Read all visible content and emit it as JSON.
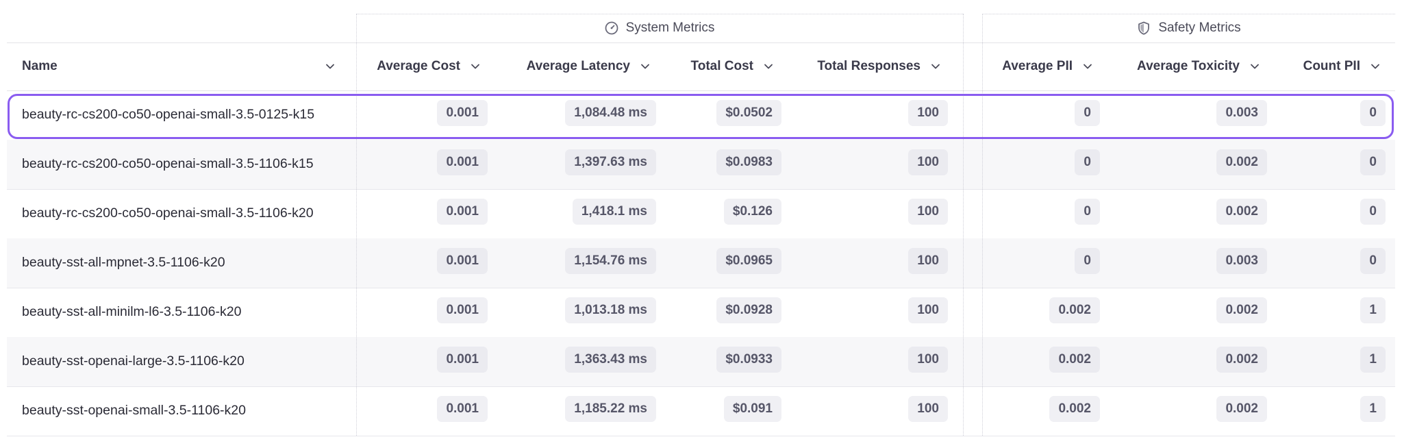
{
  "groups": {
    "system": {
      "label": "System Metrics",
      "icon": "speedometer-icon"
    },
    "safety": {
      "label": "Safety Metrics",
      "icon": "shield-icon"
    }
  },
  "columns": [
    {
      "key": "name",
      "label": "Name"
    },
    {
      "key": "avg_cost",
      "label": "Average Cost"
    },
    {
      "key": "avg_latency",
      "label": "Average Latency"
    },
    {
      "key": "total_cost",
      "label": "Total Cost"
    },
    {
      "key": "total_responses",
      "label": "Total Responses"
    },
    {
      "key": "avg_pii",
      "label": "Average PII"
    },
    {
      "key": "avg_toxicity",
      "label": "Average Toxicity"
    },
    {
      "key": "count_pii",
      "label": "Count PII"
    }
  ],
  "rows": [
    {
      "name": "beauty-rc-cs200-co50-openai-small-3.5-0125-k15",
      "avg_cost": "0.001",
      "avg_latency": "1,084.48 ms",
      "total_cost": "$0.0502",
      "total_responses": "100",
      "avg_pii": "0",
      "avg_toxicity": "0.003",
      "count_pii": "0",
      "selected": true
    },
    {
      "name": "beauty-rc-cs200-co50-openai-small-3.5-1106-k15",
      "avg_cost": "0.001",
      "avg_latency": "1,397.63 ms",
      "total_cost": "$0.0983",
      "total_responses": "100",
      "avg_pii": "0",
      "avg_toxicity": "0.002",
      "count_pii": "0"
    },
    {
      "name": "beauty-rc-cs200-co50-openai-small-3.5-1106-k20",
      "avg_cost": "0.001",
      "avg_latency": "1,418.1 ms",
      "total_cost": "$0.126",
      "total_responses": "100",
      "avg_pii": "0",
      "avg_toxicity": "0.002",
      "count_pii": "0"
    },
    {
      "name": "beauty-sst-all-mpnet-3.5-1106-k20",
      "avg_cost": "0.001",
      "avg_latency": "1,154.76 ms",
      "total_cost": "$0.0965",
      "total_responses": "100",
      "avg_pii": "0",
      "avg_toxicity": "0.003",
      "count_pii": "0"
    },
    {
      "name": "beauty-sst-all-minilm-l6-3.5-1106-k20",
      "avg_cost": "0.001",
      "avg_latency": "1,013.18 ms",
      "total_cost": "$0.0928",
      "total_responses": "100",
      "avg_pii": "0.002",
      "avg_toxicity": "0.002",
      "count_pii": "1"
    },
    {
      "name": "beauty-sst-openai-large-3.5-1106-k20",
      "avg_cost": "0.001",
      "avg_latency": "1,363.43 ms",
      "total_cost": "$0.0933",
      "total_responses": "100",
      "avg_pii": "0.002",
      "avg_toxicity": "0.002",
      "count_pii": "1"
    },
    {
      "name": "beauty-sst-openai-small-3.5-1106-k20",
      "avg_cost": "0.001",
      "avg_latency": "1,185.22 ms",
      "total_cost": "$0.091",
      "total_responses": "100",
      "avg_pii": "0.002",
      "avg_toxicity": "0.002",
      "count_pii": "1"
    }
  ],
  "colors": {
    "selection_outline": "#8a5cf0",
    "pill_bg": "#f0f0f4",
    "alt_row_bg": "#f7f7f9"
  }
}
